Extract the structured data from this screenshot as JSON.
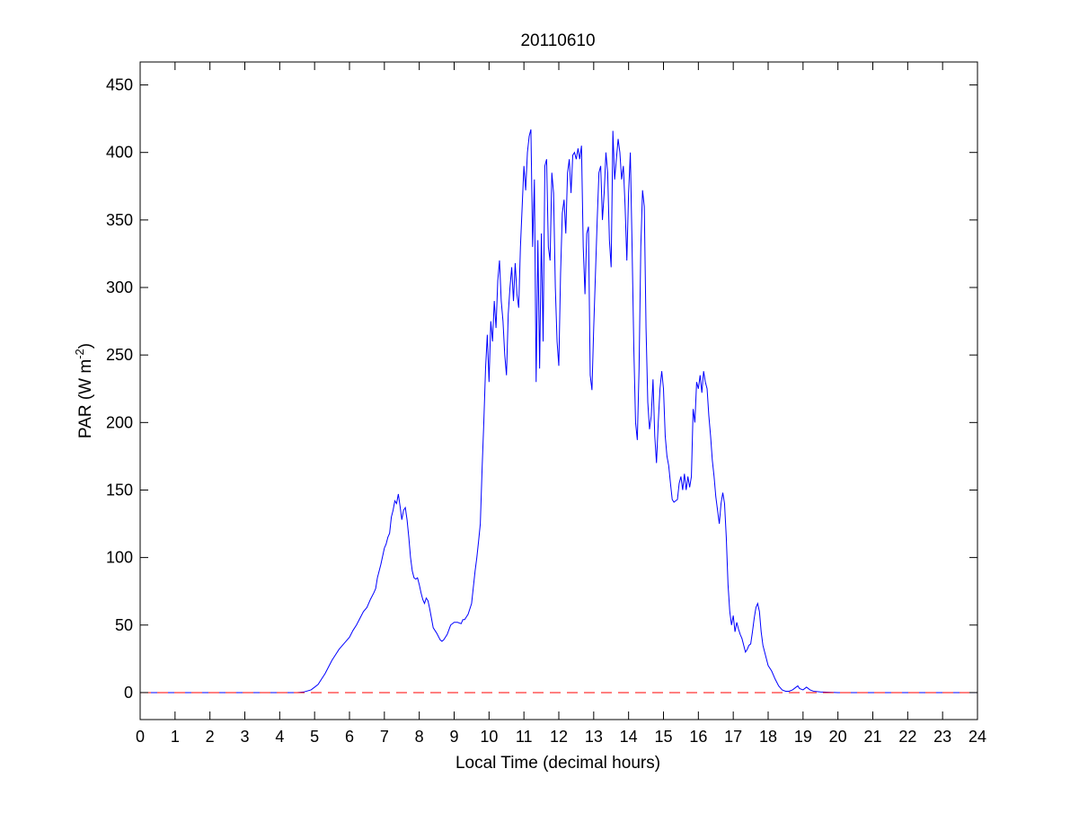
{
  "chart_data": {
    "type": "line",
    "title": "20110610",
    "xlabel": "Local Time (decimal hours)",
    "ylabel_main": "PAR (W m",
    "ylabel_exponent": "-2",
    "ylabel_close": ")",
    "xlim": [
      0,
      24
    ],
    "ylim": [
      -20,
      467
    ],
    "x_ticks": [
      0,
      1,
      2,
      3,
      4,
      5,
      6,
      7,
      8,
      9,
      10,
      11,
      12,
      13,
      14,
      15,
      16,
      17,
      18,
      19,
      20,
      21,
      22,
      23,
      24
    ],
    "y_ticks": [
      0,
      50,
      100,
      150,
      200,
      250,
      300,
      350,
      400,
      450
    ],
    "grid": false,
    "series": [
      {
        "color": "#0000ff",
        "style": "solid",
        "points": [
          [
            0,
            0
          ],
          [
            4.5,
            0
          ],
          [
            4.7,
            0.5
          ],
          [
            4.9,
            2
          ],
          [
            5.0,
            4
          ],
          [
            5.1,
            6
          ],
          [
            5.2,
            10
          ],
          [
            5.3,
            14
          ],
          [
            5.4,
            19
          ],
          [
            5.5,
            24
          ],
          [
            5.6,
            28
          ],
          [
            5.7,
            32
          ],
          [
            5.8,
            35
          ],
          [
            5.9,
            38
          ],
          [
            6.0,
            41
          ],
          [
            6.1,
            46
          ],
          [
            6.2,
            50
          ],
          [
            6.3,
            55
          ],
          [
            6.4,
            60
          ],
          [
            6.5,
            63
          ],
          [
            6.6,
            69
          ],
          [
            6.7,
            74
          ],
          [
            6.75,
            77
          ],
          [
            6.8,
            85
          ],
          [
            6.9,
            95
          ],
          [
            7.0,
            107
          ],
          [
            7.05,
            110
          ],
          [
            7.1,
            115
          ],
          [
            7.15,
            118
          ],
          [
            7.2,
            130
          ],
          [
            7.25,
            135
          ],
          [
            7.3,
            142
          ],
          [
            7.35,
            140
          ],
          [
            7.4,
            147
          ],
          [
            7.45,
            138
          ],
          [
            7.5,
            128
          ],
          [
            7.55,
            135
          ],
          [
            7.6,
            137
          ],
          [
            7.65,
            128
          ],
          [
            7.7,
            115
          ],
          [
            7.75,
            100
          ],
          [
            7.8,
            90
          ],
          [
            7.85,
            85
          ],
          [
            7.9,
            84
          ],
          [
            7.95,
            85
          ],
          [
            8.0,
            80
          ],
          [
            8.05,
            74
          ],
          [
            8.1,
            69
          ],
          [
            8.15,
            66
          ],
          [
            8.2,
            70
          ],
          [
            8.25,
            68
          ],
          [
            8.3,
            62
          ],
          [
            8.35,
            55
          ],
          [
            8.4,
            48
          ],
          [
            8.5,
            44
          ],
          [
            8.6,
            39
          ],
          [
            8.65,
            38
          ],
          [
            8.7,
            39
          ],
          [
            8.8,
            43
          ],
          [
            8.9,
            50
          ],
          [
            9.0,
            52
          ],
          [
            9.1,
            52
          ],
          [
            9.2,
            51
          ],
          [
            9.25,
            54
          ],
          [
            9.3,
            54
          ],
          [
            9.4,
            58
          ],
          [
            9.5,
            66
          ],
          [
            9.55,
            78
          ],
          [
            9.6,
            90
          ],
          [
            9.65,
            100
          ],
          [
            9.7,
            112
          ],
          [
            9.75,
            125
          ],
          [
            9.8,
            165
          ],
          [
            9.85,
            200
          ],
          [
            9.9,
            240
          ],
          [
            9.95,
            265
          ],
          [
            10.0,
            230
          ],
          [
            10.05,
            275
          ],
          [
            10.1,
            260
          ],
          [
            10.15,
            290
          ],
          [
            10.2,
            270
          ],
          [
            10.25,
            305
          ],
          [
            10.3,
            320
          ],
          [
            10.35,
            290
          ],
          [
            10.4,
            275
          ],
          [
            10.45,
            250
          ],
          [
            10.5,
            235
          ],
          [
            10.55,
            280
          ],
          [
            10.6,
            300
          ],
          [
            10.65,
            315
          ],
          [
            10.7,
            290
          ],
          [
            10.75,
            318
          ],
          [
            10.8,
            295
          ],
          [
            10.85,
            285
          ],
          [
            10.9,
            330
          ],
          [
            10.95,
            360
          ],
          [
            11.0,
            390
          ],
          [
            11.05,
            372
          ],
          [
            11.1,
            400
          ],
          [
            11.15,
            412
          ],
          [
            11.2,
            417
          ],
          [
            11.25,
            330
          ],
          [
            11.3,
            380
          ],
          [
            11.35,
            230
          ],
          [
            11.4,
            335
          ],
          [
            11.45,
            240
          ],
          [
            11.5,
            340
          ],
          [
            11.55,
            260
          ],
          [
            11.6,
            390
          ],
          [
            11.65,
            395
          ],
          [
            11.7,
            330
          ],
          [
            11.75,
            320
          ],
          [
            11.8,
            385
          ],
          [
            11.85,
            370
          ],
          [
            11.9,
            300
          ],
          [
            11.95,
            260
          ],
          [
            12.0,
            242
          ],
          [
            12.05,
            310
          ],
          [
            12.1,
            355
          ],
          [
            12.15,
            365
          ],
          [
            12.2,
            340
          ],
          [
            12.25,
            385
          ],
          [
            12.3,
            395
          ],
          [
            12.35,
            370
          ],
          [
            12.4,
            398
          ],
          [
            12.45,
            400
          ],
          [
            12.5,
            395
          ],
          [
            12.55,
            403
          ],
          [
            12.6,
            395
          ],
          [
            12.65,
            405
          ],
          [
            12.7,
            330
          ],
          [
            12.75,
            295
          ],
          [
            12.8,
            340
          ],
          [
            12.85,
            345
          ],
          [
            12.9,
            235
          ],
          [
            12.95,
            224
          ],
          [
            13.0,
            270
          ],
          [
            13.05,
            310
          ],
          [
            13.1,
            350
          ],
          [
            13.15,
            385
          ],
          [
            13.2,
            390
          ],
          [
            13.25,
            350
          ],
          [
            13.3,
            370
          ],
          [
            13.35,
            400
          ],
          [
            13.4,
            385
          ],
          [
            13.45,
            335
          ],
          [
            13.5,
            315
          ],
          [
            13.55,
            416
          ],
          [
            13.6,
            380
          ],
          [
            13.65,
            395
          ],
          [
            13.7,
            410
          ],
          [
            13.75,
            400
          ],
          [
            13.8,
            380
          ],
          [
            13.85,
            390
          ],
          [
            13.9,
            360
          ],
          [
            13.95,
            320
          ],
          [
            14.0,
            370
          ],
          [
            14.05,
            400
          ],
          [
            14.1,
            330
          ],
          [
            14.15,
            255
          ],
          [
            14.2,
            200
          ],
          [
            14.25,
            187
          ],
          [
            14.3,
            240
          ],
          [
            14.35,
            330
          ],
          [
            14.4,
            372
          ],
          [
            14.45,
            360
          ],
          [
            14.5,
            270
          ],
          [
            14.55,
            215
          ],
          [
            14.6,
            195
          ],
          [
            14.65,
            205
          ],
          [
            14.7,
            232
          ],
          [
            14.75,
            190
          ],
          [
            14.8,
            170
          ],
          [
            14.85,
            200
          ],
          [
            14.9,
            225
          ],
          [
            14.95,
            238
          ],
          [
            15.0,
            225
          ],
          [
            15.05,
            190
          ],
          [
            15.1,
            175
          ],
          [
            15.15,
            168
          ],
          [
            15.2,
            155
          ],
          [
            15.25,
            143
          ],
          [
            15.3,
            141
          ],
          [
            15.35,
            142
          ],
          [
            15.4,
            143
          ],
          [
            15.45,
            155
          ],
          [
            15.5,
            160
          ],
          [
            15.55,
            150
          ],
          [
            15.6,
            162
          ],
          [
            15.65,
            150
          ],
          [
            15.7,
            160
          ],
          [
            15.75,
            152
          ],
          [
            15.8,
            160
          ],
          [
            15.85,
            210
          ],
          [
            15.9,
            200
          ],
          [
            15.95,
            230
          ],
          [
            16.0,
            225
          ],
          [
            16.05,
            235
          ],
          [
            16.1,
            222
          ],
          [
            16.15,
            238
          ],
          [
            16.2,
            230
          ],
          [
            16.25,
            225
          ],
          [
            16.3,
            205
          ],
          [
            16.35,
            190
          ],
          [
            16.4,
            172
          ],
          [
            16.45,
            160
          ],
          [
            16.5,
            145
          ],
          [
            16.55,
            135
          ],
          [
            16.6,
            125
          ],
          [
            16.65,
            140
          ],
          [
            16.7,
            148
          ],
          [
            16.75,
            140
          ],
          [
            16.8,
            115
          ],
          [
            16.85,
            80
          ],
          [
            16.9,
            60
          ],
          [
            16.95,
            50
          ],
          [
            17.0,
            57
          ],
          [
            17.05,
            45
          ],
          [
            17.1,
            52
          ],
          [
            17.15,
            47
          ],
          [
            17.2,
            43
          ],
          [
            17.25,
            40
          ],
          [
            17.3,
            35
          ],
          [
            17.35,
            30
          ],
          [
            17.4,
            32
          ],
          [
            17.45,
            35
          ],
          [
            17.5,
            36
          ],
          [
            17.55,
            45
          ],
          [
            17.6,
            55
          ],
          [
            17.65,
            63
          ],
          [
            17.7,
            66
          ],
          [
            17.75,
            60
          ],
          [
            17.8,
            45
          ],
          [
            17.85,
            35
          ],
          [
            17.9,
            30
          ],
          [
            17.95,
            25
          ],
          [
            18.0,
            20
          ],
          [
            18.1,
            16
          ],
          [
            18.2,
            10
          ],
          [
            18.3,
            5
          ],
          [
            18.4,
            2
          ],
          [
            18.5,
            1
          ],
          [
            18.6,
            1
          ],
          [
            18.7,
            2
          ],
          [
            18.8,
            4
          ],
          [
            18.85,
            5
          ],
          [
            18.9,
            3
          ],
          [
            19.0,
            2
          ],
          [
            19.1,
            4
          ],
          [
            19.2,
            2
          ],
          [
            19.3,
            1
          ],
          [
            19.5,
            0.5
          ],
          [
            20.0,
            0
          ],
          [
            24,
            0
          ]
        ]
      },
      {
        "color": "#ff0000",
        "style": "dashed",
        "points": [
          [
            0,
            0
          ],
          [
            24,
            0
          ]
        ]
      }
    ]
  }
}
